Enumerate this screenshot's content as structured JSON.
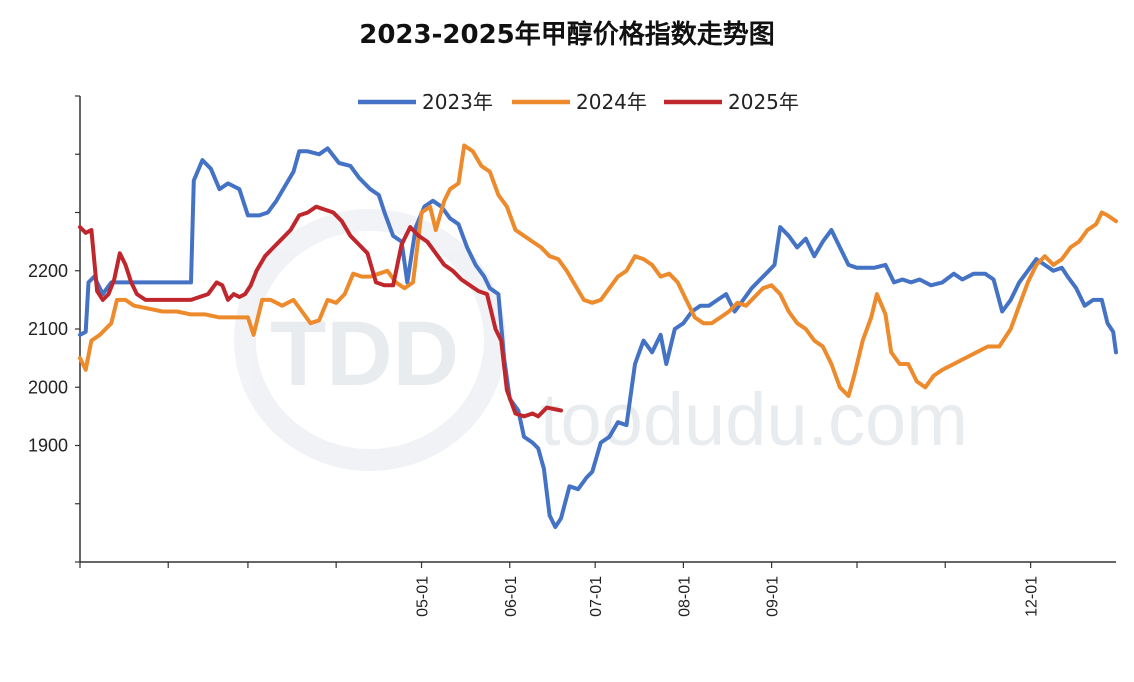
{
  "chart_data": {
    "type": "line",
    "title": "2023-2025年甲醇价格指数走势图",
    "xlabel": "",
    "ylabel": "",
    "ylim": [
      1700,
      2500
    ],
    "xlim_day": [
      1,
      365
    ],
    "y_ticks": [
      1700,
      1800,
      1900,
      2000,
      2100,
      2200,
      2300,
      2400,
      2500
    ],
    "y_tick_labels": [
      "",
      "",
      "1900",
      "2000",
      "2100",
      "2200",
      "",
      "",
      ""
    ],
    "x_ticks": [
      {
        "day": 1,
        "label": ""
      },
      {
        "day": 32,
        "label": ""
      },
      {
        "day": 60,
        "label": ""
      },
      {
        "day": 91,
        "label": ""
      },
      {
        "day": 121,
        "label": "05-01"
      },
      {
        "day": 152,
        "label": "06-01"
      },
      {
        "day": 182,
        "label": "07-01"
      },
      {
        "day": 213,
        "label": "08-01"
      },
      {
        "day": 244,
        "label": "09-01"
      },
      {
        "day": 274,
        "label": ""
      },
      {
        "day": 305,
        "label": ""
      },
      {
        "day": 335,
        "label": "12-01"
      }
    ],
    "legend_position": "top-center",
    "grid": false,
    "series": [
      {
        "name": "2023年",
        "color": "#4472c4",
        "points": [
          [
            1,
            2090
          ],
          [
            3,
            2095
          ],
          [
            4,
            2180
          ],
          [
            6,
            2190
          ],
          [
            9,
            2160
          ],
          [
            12,
            2180
          ],
          [
            40,
            2180
          ],
          [
            41,
            2355
          ],
          [
            44,
            2390
          ],
          [
            47,
            2375
          ],
          [
            50,
            2340
          ],
          [
            53,
            2350
          ],
          [
            57,
            2340
          ],
          [
            60,
            2295
          ],
          [
            64,
            2295
          ],
          [
            67,
            2300
          ],
          [
            70,
            2320
          ],
          [
            73,
            2345
          ],
          [
            76,
            2370
          ],
          [
            78,
            2405
          ],
          [
            81,
            2405
          ],
          [
            85,
            2400
          ],
          [
            88,
            2410
          ],
          [
            92,
            2385
          ],
          [
            96,
            2380
          ],
          [
            99,
            2360
          ],
          [
            103,
            2340
          ],
          [
            106,
            2330
          ],
          [
            108,
            2300
          ],
          [
            111,
            2260
          ],
          [
            114,
            2250
          ],
          [
            116,
            2180
          ],
          [
            119,
            2275
          ],
          [
            122,
            2310
          ],
          [
            125,
            2320
          ],
          [
            128,
            2310
          ],
          [
            131,
            2290
          ],
          [
            134,
            2280
          ],
          [
            137,
            2240
          ],
          [
            140,
            2210
          ],
          [
            143,
            2190
          ],
          [
            145,
            2170
          ],
          [
            148,
            2160
          ],
          [
            150,
            2050
          ],
          [
            152,
            1980
          ],
          [
            155,
            1960
          ],
          [
            157,
            1915
          ],
          [
            160,
            1905
          ],
          [
            162,
            1895
          ],
          [
            164,
            1860
          ],
          [
            166,
            1780
          ],
          [
            168,
            1760
          ],
          [
            170,
            1775
          ],
          [
            173,
            1830
          ],
          [
            176,
            1825
          ],
          [
            179,
            1845
          ],
          [
            181,
            1855
          ],
          [
            184,
            1905
          ],
          [
            187,
            1915
          ],
          [
            190,
            1940
          ],
          [
            193,
            1935
          ],
          [
            196,
            2040
          ],
          [
            199,
            2080
          ],
          [
            202,
            2060
          ],
          [
            205,
            2090
          ],
          [
            207,
            2040
          ],
          [
            210,
            2100
          ],
          [
            213,
            2110
          ],
          [
            216,
            2130
          ],
          [
            219,
            2140
          ],
          [
            222,
            2140
          ],
          [
            225,
            2150
          ],
          [
            228,
            2160
          ],
          [
            231,
            2130
          ],
          [
            234,
            2150
          ],
          [
            237,
            2170
          ],
          [
            240,
            2185
          ],
          [
            243,
            2200
          ],
          [
            245,
            2210
          ],
          [
            247,
            2275
          ],
          [
            250,
            2260
          ],
          [
            253,
            2240
          ],
          [
            256,
            2255
          ],
          [
            259,
            2225
          ],
          [
            262,
            2250
          ],
          [
            265,
            2270
          ],
          [
            268,
            2240
          ],
          [
            271,
            2210
          ],
          [
            274,
            2205
          ],
          [
            280,
            2205
          ],
          [
            284,
            2210
          ],
          [
            287,
            2180
          ],
          [
            290,
            2185
          ],
          [
            293,
            2180
          ],
          [
            296,
            2185
          ],
          [
            300,
            2175
          ],
          [
            304,
            2180
          ],
          [
            308,
            2195
          ],
          [
            311,
            2185
          ],
          [
            315,
            2195
          ],
          [
            319,
            2195
          ],
          [
            322,
            2185
          ],
          [
            325,
            2130
          ],
          [
            328,
            2150
          ],
          [
            331,
            2180
          ],
          [
            334,
            2200
          ],
          [
            337,
            2220
          ],
          [
            340,
            2210
          ],
          [
            343,
            2200
          ],
          [
            346,
            2205
          ],
          [
            348,
            2190
          ],
          [
            351,
            2170
          ],
          [
            354,
            2140
          ],
          [
            357,
            2150
          ],
          [
            360,
            2150
          ],
          [
            362,
            2110
          ],
          [
            364,
            2095
          ],
          [
            365,
            2060
          ]
        ]
      },
      {
        "name": "2024年",
        "color": "#ed8a2c",
        "points": [
          [
            1,
            2050
          ],
          [
            3,
            2030
          ],
          [
            5,
            2080
          ],
          [
            8,
            2090
          ],
          [
            12,
            2110
          ],
          [
            14,
            2150
          ],
          [
            17,
            2150
          ],
          [
            20,
            2140
          ],
          [
            25,
            2135
          ],
          [
            30,
            2130
          ],
          [
            35,
            2130
          ],
          [
            40,
            2125
          ],
          [
            45,
            2125
          ],
          [
            50,
            2120
          ],
          [
            55,
            2120
          ],
          [
            60,
            2120
          ],
          [
            62,
            2090
          ],
          [
            65,
            2150
          ],
          [
            68,
            2150
          ],
          [
            72,
            2140
          ],
          [
            76,
            2150
          ],
          [
            79,
            2130
          ],
          [
            82,
            2110
          ],
          [
            85,
            2115
          ],
          [
            88,
            2150
          ],
          [
            91,
            2145
          ],
          [
            94,
            2160
          ],
          [
            97,
            2195
          ],
          [
            100,
            2190
          ],
          [
            103,
            2190
          ],
          [
            106,
            2195
          ],
          [
            109,
            2200
          ],
          [
            112,
            2180
          ],
          [
            115,
            2170
          ],
          [
            118,
            2180
          ],
          [
            121,
            2300
          ],
          [
            124,
            2310
          ],
          [
            126,
            2270
          ],
          [
            129,
            2320
          ],
          [
            131,
            2340
          ],
          [
            134,
            2350
          ],
          [
            136,
            2415
          ],
          [
            139,
            2405
          ],
          [
            142,
            2380
          ],
          [
            145,
            2370
          ],
          [
            148,
            2330
          ],
          [
            151,
            2310
          ],
          [
            154,
            2270
          ],
          [
            157,
            2260
          ],
          [
            160,
            2250
          ],
          [
            163,
            2240
          ],
          [
            166,
            2225
          ],
          [
            169,
            2220
          ],
          [
            172,
            2200
          ],
          [
            175,
            2175
          ],
          [
            178,
            2150
          ],
          [
            181,
            2145
          ],
          [
            184,
            2150
          ],
          [
            187,
            2170
          ],
          [
            190,
            2190
          ],
          [
            193,
            2200
          ],
          [
            196,
            2225
          ],
          [
            199,
            2220
          ],
          [
            202,
            2210
          ],
          [
            205,
            2190
          ],
          [
            208,
            2195
          ],
          [
            211,
            2180
          ],
          [
            214,
            2150
          ],
          [
            217,
            2120
          ],
          [
            220,
            2110
          ],
          [
            223,
            2110
          ],
          [
            226,
            2120
          ],
          [
            229,
            2130
          ],
          [
            232,
            2145
          ],
          [
            235,
            2140
          ],
          [
            238,
            2155
          ],
          [
            241,
            2170
          ],
          [
            244,
            2175
          ],
          [
            247,
            2160
          ],
          [
            250,
            2130
          ],
          [
            253,
            2110
          ],
          [
            256,
            2100
          ],
          [
            259,
            2080
          ],
          [
            262,
            2070
          ],
          [
            265,
            2040
          ],
          [
            268,
            2000
          ],
          [
            271,
            1985
          ],
          [
            273,
            2020
          ],
          [
            276,
            2080
          ],
          [
            279,
            2120
          ],
          [
            281,
            2160
          ],
          [
            284,
            2125
          ],
          [
            286,
            2060
          ],
          [
            289,
            2040
          ],
          [
            292,
            2040
          ],
          [
            295,
            2010
          ],
          [
            298,
            2000
          ],
          [
            301,
            2020
          ],
          [
            304,
            2030
          ],
          [
            308,
            2040
          ],
          [
            312,
            2050
          ],
          [
            316,
            2060
          ],
          [
            320,
            2070
          ],
          [
            324,
            2070
          ],
          [
            328,
            2100
          ],
          [
            331,
            2140
          ],
          [
            334,
            2180
          ],
          [
            337,
            2210
          ],
          [
            340,
            2225
          ],
          [
            343,
            2210
          ],
          [
            346,
            2220
          ],
          [
            349,
            2240
          ],
          [
            352,
            2250
          ],
          [
            355,
            2270
          ],
          [
            358,
            2280
          ],
          [
            360,
            2300
          ],
          [
            362,
            2295
          ],
          [
            365,
            2285
          ]
        ]
      },
      {
        "name": "2025年",
        "color": "#c0272d",
        "points": [
          [
            1,
            2275
          ],
          [
            3,
            2265
          ],
          [
            5,
            2270
          ],
          [
            7,
            2165
          ],
          [
            9,
            2150
          ],
          [
            11,
            2160
          ],
          [
            13,
            2185
          ],
          [
            15,
            2230
          ],
          [
            17,
            2210
          ],
          [
            19,
            2180
          ],
          [
            21,
            2160
          ],
          [
            24,
            2150
          ],
          [
            28,
            2150
          ],
          [
            32,
            2150
          ],
          [
            36,
            2150
          ],
          [
            40,
            2150
          ],
          [
            43,
            2155
          ],
          [
            46,
            2160
          ],
          [
            49,
            2180
          ],
          [
            51,
            2175
          ],
          [
            53,
            2150
          ],
          [
            55,
            2160
          ],
          [
            57,
            2155
          ],
          [
            59,
            2160
          ],
          [
            61,
            2175
          ],
          [
            63,
            2200
          ],
          [
            66,
            2225
          ],
          [
            69,
            2240
          ],
          [
            72,
            2255
          ],
          [
            75,
            2270
          ],
          [
            78,
            2295
          ],
          [
            81,
            2300
          ],
          [
            84,
            2310
          ],
          [
            87,
            2305
          ],
          [
            90,
            2300
          ],
          [
            93,
            2285
          ],
          [
            96,
            2260
          ],
          [
            99,
            2245
          ],
          [
            102,
            2230
          ],
          [
            105,
            2180
          ],
          [
            108,
            2175
          ],
          [
            111,
            2175
          ],
          [
            114,
            2245
          ],
          [
            117,
            2275
          ],
          [
            120,
            2260
          ],
          [
            123,
            2250
          ],
          [
            126,
            2230
          ],
          [
            129,
            2210
          ],
          [
            132,
            2200
          ],
          [
            135,
            2185
          ],
          [
            138,
            2175
          ],
          [
            141,
            2165
          ],
          [
            144,
            2160
          ],
          [
            147,
            2100
          ],
          [
            149,
            2080
          ],
          [
            151,
            1995
          ],
          [
            154,
            1955
          ],
          [
            157,
            1950
          ],
          [
            160,
            1955
          ],
          [
            162,
            1950
          ],
          [
            165,
            1965
          ],
          [
            170,
            1960
          ]
        ]
      }
    ]
  }
}
